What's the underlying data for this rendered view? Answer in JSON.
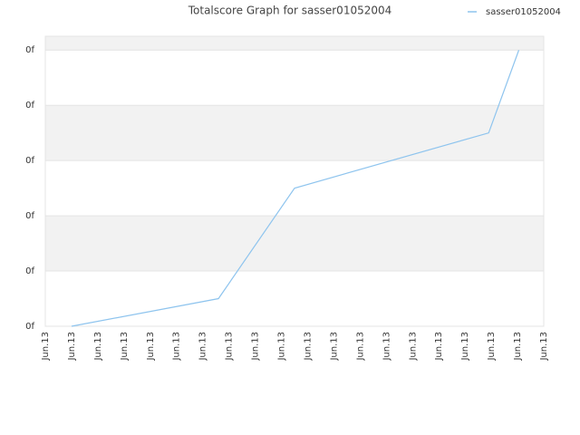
{
  "chart_data": {
    "type": "line",
    "title": "Totalscore Graph for sasser01052004",
    "x": [
      1,
      6.6,
      9.5,
      16.9,
      18.05
    ],
    "series": [
      {
        "name": "sasser01052004",
        "color": "#8ec4ee",
        "values": [
          0,
          0.5,
          2.5,
          3.5,
          5
        ]
      }
    ],
    "xlim": [
      0,
      19
    ],
    "xticks": [
      {
        "value": 0,
        "label": "Jun.13"
      },
      {
        "value": 1,
        "label": "Jun.13"
      },
      {
        "value": 2,
        "label": "Jun.13"
      },
      {
        "value": 3,
        "label": "Jun.13"
      },
      {
        "value": 4,
        "label": "Jun.13"
      },
      {
        "value": 5,
        "label": "Jun.13"
      },
      {
        "value": 6,
        "label": "Jun.13"
      },
      {
        "value": 7,
        "label": "Jun.13"
      },
      {
        "value": 8,
        "label": "Jun.13"
      },
      {
        "value": 9,
        "label": "Jun.13"
      },
      {
        "value": 10,
        "label": "Jun.13"
      },
      {
        "value": 11,
        "label": "Jun.13"
      },
      {
        "value": 12,
        "label": "Jun.13"
      },
      {
        "value": 13,
        "label": "Jun.13"
      },
      {
        "value": 14,
        "label": "Jun.13"
      },
      {
        "value": 15,
        "label": "Jun.13"
      },
      {
        "value": 16,
        "label": "Jun.13"
      },
      {
        "value": 17,
        "label": "Jun.13"
      },
      {
        "value": 18,
        "label": "Jun.13"
      },
      {
        "value": 19,
        "label": "Jun.13"
      }
    ],
    "ylim": [
      0,
      5.25
    ],
    "yticks": [
      {
        "value": 0,
        "label": "0f"
      },
      {
        "value": 1,
        "label": "0f"
      },
      {
        "value": 2,
        "label": "0f"
      },
      {
        "value": 3,
        "label": "0f"
      },
      {
        "value": 4,
        "label": "0f"
      },
      {
        "value": 5,
        "label": "0f"
      }
    ],
    "grid": true,
    "legend": "top-right"
  }
}
